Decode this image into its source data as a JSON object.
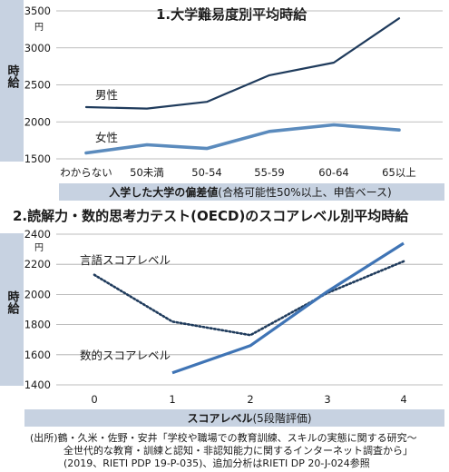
{
  "chart_data": [
    {
      "type": "line",
      "title": "1.大学難易度別平均時給",
      "ylabel": "時給",
      "yunit": "円",
      "xlabel": "入学した大学の偏差値",
      "xlabel_note": "(合格可能性50%以上、申告ベース)",
      "categories": [
        "わからない",
        "50未満",
        "50-54",
        "55-59",
        "60-64",
        "65以上"
      ],
      "ylim": [
        1500,
        3500
      ],
      "yticks": [
        1500,
        2000,
        2500,
        3000,
        3500
      ],
      "colors": {
        "男性": "#1f3b5c",
        "女性": "#5b8bbd"
      },
      "series": [
        {
          "name": "男性",
          "values": [
            2200,
            2180,
            2270,
            2630,
            2800,
            3400
          ]
        },
        {
          "name": "女性",
          "values": [
            1580,
            1690,
            1640,
            1870,
            1960,
            1890
          ]
        }
      ]
    },
    {
      "type": "line",
      "title": "2.読解力・数的思考力テスト(OECD)のスコアレベル別平均時給",
      "ylabel": "時給",
      "yunit": "円",
      "xlabel": "スコアレベル",
      "xlabel_note": "(5段階評価)",
      "x": [
        0,
        1,
        2,
        3,
        4
      ],
      "ylim": [
        1400,
        2400
      ],
      "yticks": [
        1400,
        1600,
        1800,
        2000,
        2200,
        2400
      ],
      "colors": {
        "言語スコアレベル": "#1f3b5c",
        "数的スコアレベル": "#3f74b5"
      },
      "series": [
        {
          "name": "言語スコアレベル",
          "style": "dotted",
          "x": [
            0,
            1,
            2,
            3,
            4
          ],
          "values": [
            2130,
            1820,
            1730,
            2010,
            2220
          ]
        },
        {
          "name": "数的スコアレベル",
          "style": "solid",
          "x": [
            1,
            2,
            3,
            4
          ],
          "values": [
            1480,
            1660,
            2020,
            2340
          ]
        }
      ]
    }
  ],
  "source": {
    "line1": "(出所)鶴・久米・佐野・安井「学校や職場での教育訓練、スキルの実態に関する研究〜",
    "line2": "全世代的な教育・訓練と認知・非認知能力に関するインターネット調査から」",
    "line3": "(2019、RIETI PDP 19-P-035)、追加分析はRIETI DP 20-J-024参照"
  },
  "style": {
    "sidebar_color": "#c7d2e1",
    "axis_band_color": "#c7d2e1",
    "grid_color": "#a9a9a9"
  }
}
